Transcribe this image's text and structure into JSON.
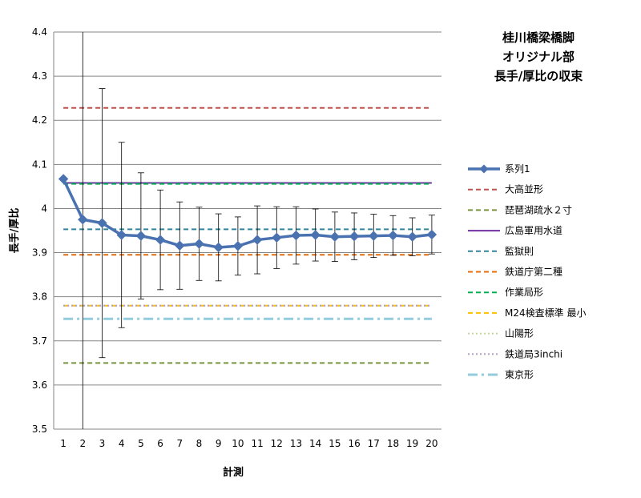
{
  "chart_data": {
    "type": "line",
    "title_lines": [
      "桂川橋梁橋脚",
      "オリジナル部",
      "長手/厚比の収束"
    ],
    "xlabel": "計測",
    "ylabel": "長手/厚比",
    "x": [
      1,
      2,
      3,
      4,
      5,
      6,
      7,
      8,
      9,
      10,
      11,
      12,
      13,
      14,
      15,
      16,
      17,
      18,
      19,
      20
    ],
    "ylim": [
      3.5,
      4.4
    ],
    "yticks": [
      "3.5",
      "3.6",
      "3.7",
      "3.8",
      "3.9",
      "4",
      "4.1",
      "4.2",
      "4.3",
      "4.4"
    ],
    "grid": true,
    "legend_position": "right",
    "series": [
      {
        "name": "系列1",
        "color": "#4a72b0",
        "values": [
          4.067,
          3.975,
          3.967,
          3.94,
          3.938,
          3.929,
          3.916,
          3.92,
          3.912,
          3.915,
          3.929,
          3.934,
          3.939,
          3.94,
          3.936,
          3.937,
          3.938,
          3.939,
          3.936,
          3.941
        ],
        "errors": [
          0,
          1.0,
          0.305,
          0.21,
          0.143,
          0.113,
          0.099,
          0.083,
          0.076,
          0.066,
          0.077,
          0.07,
          0.065,
          0.059,
          0.056,
          0.053,
          0.049,
          0.045,
          0.043,
          0.044
        ]
      }
    ],
    "reference_lines": [
      {
        "name": "大高並形",
        "value": 4.228,
        "color": "#c0504d",
        "style": "dash"
      },
      {
        "name": "琵琶湖疏水２寸",
        "value": 3.65,
        "color": "#77933c",
        "style": "dash"
      },
      {
        "name": "広島軍用水道",
        "value": 4.058,
        "color": "#7030a0",
        "style": "solid"
      },
      {
        "name": "監獄則",
        "value": 3.953,
        "color": "#31849b",
        "style": "dash"
      },
      {
        "name": "鉄道庁第二種",
        "value": 3.895,
        "color": "#e46c0a",
        "style": "dash"
      },
      {
        "name": "作業局形",
        "value": 4.056,
        "color": "#00b050",
        "style": "dash"
      },
      {
        "name": "M24検査標準 最小",
        "value": 3.78,
        "color": "#ffc000",
        "style": "dash"
      },
      {
        "name": "山陽形",
        "value": 3.78,
        "color": "#c3d69b",
        "style": "dot"
      },
      {
        "name": "鉄道局3inchi",
        "value": 3.78,
        "color": "#b1a0c7",
        "style": "dot"
      },
      {
        "name": "東京形",
        "value": 3.75,
        "color": "#93cddd",
        "style": "dashdot"
      }
    ]
  }
}
